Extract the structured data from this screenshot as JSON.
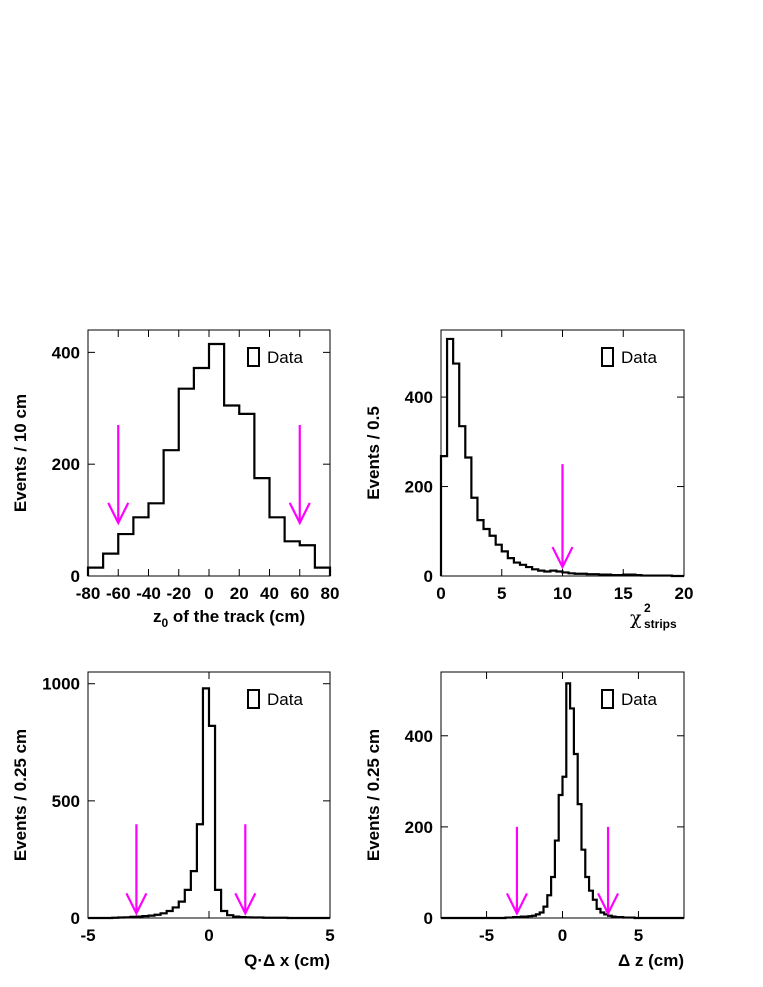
{
  "chart_data": [
    {
      "type": "histogram",
      "ylabel": "Events / 10 cm",
      "xlabel": "z",
      "xlabel_sub": "0",
      "xlabel_rest": " of the track (cm)",
      "legend": "Data",
      "xlim": [
        -80,
        80
      ],
      "ylim": [
        0,
        440
      ],
      "xticks": [
        -80,
        -60,
        -40,
        -20,
        0,
        20,
        40,
        60,
        80
      ],
      "xtick_labels": [
        "-80",
        "-60",
        "-40",
        "-20",
        "0",
        "20",
        "40",
        "60",
        "80"
      ],
      "yticks": [
        0,
        200,
        400
      ],
      "ytick_labels": [
        "0",
        "200",
        "400"
      ],
      "bin_edges": [
        -80,
        -70,
        -60,
        -50,
        -40,
        -30,
        -20,
        -10,
        0,
        10,
        20,
        30,
        40,
        50,
        60,
        70,
        80
      ],
      "values": [
        15,
        40,
        75,
        105,
        130,
        225,
        335,
        372,
        415,
        305,
        290,
        175,
        105,
        62,
        55,
        15
      ],
      "arrows": [
        {
          "x": -60,
          "y_top": 270,
          "y_tip": 95
        },
        {
          "x": 60,
          "y_top": 270,
          "y_tip": 95
        }
      ]
    },
    {
      "type": "histogram",
      "ylabel": "Events / 0.5",
      "xlabel": "χ",
      "xlabel_sup": "2",
      "xlabel_sub": "strips",
      "legend": "Data",
      "xlim": [
        0,
        20
      ],
      "ylim": [
        0,
        550
      ],
      "xticks": [
        0,
        5,
        10,
        15,
        20
      ],
      "xtick_labels": [
        "0",
        "5",
        "10",
        "15",
        "20"
      ],
      "yticks": [
        0,
        200,
        400
      ],
      "ytick_labels": [
        "0",
        "200",
        "400"
      ],
      "bin_edges": [
        0,
        0.5,
        1,
        1.5,
        2,
        2.5,
        3,
        3.5,
        4,
        4.5,
        5,
        5.5,
        6,
        6.5,
        7,
        7.5,
        8,
        8.5,
        9,
        9.5,
        10,
        10.5,
        11,
        11.5,
        12,
        12.5,
        13,
        13.5,
        14,
        14.5,
        15,
        15.5,
        16,
        16.5,
        17,
        17.5,
        18,
        18.5,
        19,
        19.5,
        20
      ],
      "values": [
        268,
        530,
        475,
        335,
        265,
        175,
        125,
        105,
        90,
        70,
        55,
        40,
        30,
        25,
        20,
        15,
        12,
        10,
        12,
        10,
        8,
        6,
        5,
        5,
        4,
        4,
        3,
        3,
        2,
        2,
        3,
        3,
        2,
        1,
        1,
        1,
        1,
        1,
        0,
        0
      ],
      "arrows": [
        {
          "x": 10,
          "y_top": 250,
          "y_tip": 20
        }
      ]
    },
    {
      "type": "histogram",
      "ylabel": "Events / 0.25 cm",
      "xlabel": "Q·Δ x (cm)",
      "legend": "Data",
      "xlim": [
        -5,
        5
      ],
      "ylim": [
        0,
        1050
      ],
      "xticks": [
        -5,
        0,
        5
      ],
      "xtick_labels": [
        "-5",
        "0",
        "5"
      ],
      "yticks": [
        0,
        500,
        1000
      ],
      "ytick_labels": [
        "0",
        "500",
        "1000"
      ],
      "bin_edges": [
        -5,
        -4.75,
        -4.5,
        -4.25,
        -4,
        -3.75,
        -3.5,
        -3.25,
        -3,
        -2.75,
        -2.5,
        -2.25,
        -2,
        -1.75,
        -1.5,
        -1.25,
        -1,
        -0.75,
        -0.5,
        -0.25,
        0,
        0.25,
        0.5,
        0.75,
        1,
        1.25,
        1.5,
        1.75,
        2,
        2.25,
        2.5,
        2.75,
        3,
        3.25,
        3.5,
        3.75,
        4,
        4.25,
        4.5,
        4.75,
        5
      ],
      "values": [
        0,
        0,
        0,
        0,
        1,
        2,
        3,
        5,
        6,
        8,
        10,
        14,
        20,
        30,
        45,
        70,
        120,
        200,
        400,
        980,
        820,
        120,
        30,
        12,
        6,
        4,
        3,
        2,
        2,
        1,
        1,
        1,
        1,
        0,
        0,
        0,
        0,
        0,
        0,
        0
      ],
      "arrows": [
        {
          "x": -3,
          "y_top": 400,
          "y_tip": 20
        },
        {
          "x": 1.5,
          "y_top": 400,
          "y_tip": 20
        }
      ]
    },
    {
      "type": "histogram",
      "ylabel": "Events / 0.25 cm",
      "xlabel": "Δ z (cm)",
      "legend": "Data",
      "xlim": [
        -8,
        8
      ],
      "ylim": [
        0,
        540
      ],
      "xticks": [
        -5,
        0,
        5
      ],
      "xtick_labels": [
        "-5",
        "0",
        "5"
      ],
      "yticks": [
        0,
        200,
        400
      ],
      "ytick_labels": [
        "0",
        "200",
        "400"
      ],
      "bin_edges": [
        -8,
        -7.75,
        -7.5,
        -7.25,
        -7,
        -6.75,
        -6.5,
        -6.25,
        -6,
        -5.75,
        -5.5,
        -5.25,
        -5,
        -4.75,
        -4.5,
        -4.25,
        -4,
        -3.75,
        -3.5,
        -3.25,
        -3,
        -2.75,
        -2.5,
        -2.25,
        -2,
        -1.75,
        -1.5,
        -1.25,
        -1,
        -0.75,
        -0.5,
        -0.25,
        0,
        0.25,
        0.5,
        0.75,
        1,
        1.25,
        1.5,
        1.75,
        2,
        2.25,
        2.5,
        2.75,
        3,
        3.25,
        3.5,
        3.75,
        4,
        4.25,
        4.5,
        4.75,
        5,
        5.25,
        5.5,
        5.75,
        6,
        6.25,
        6.5,
        6.75,
        7,
        7.25,
        7.5,
        7.75,
        8
      ],
      "values": [
        0,
        0,
        0,
        0,
        0,
        0,
        0,
        0,
        0,
        0,
        0,
        0,
        0,
        0,
        0,
        0,
        0,
        1,
        1,
        2,
        2,
        3,
        3,
        4,
        5,
        8,
        12,
        25,
        50,
        90,
        170,
        270,
        310,
        515,
        460,
        360,
        250,
        150,
        90,
        60,
        40,
        20,
        12,
        8,
        5,
        3,
        2,
        2,
        1,
        1,
        1,
        0,
        0,
        0,
        0,
        0,
        0,
        0,
        0,
        0,
        0,
        0,
        0,
        0
      ],
      "arrows": [
        {
          "x": -3,
          "y_top": 200,
          "y_tip": 10
        },
        {
          "x": 3,
          "y_top": 200,
          "y_tip": 10
        }
      ]
    }
  ]
}
